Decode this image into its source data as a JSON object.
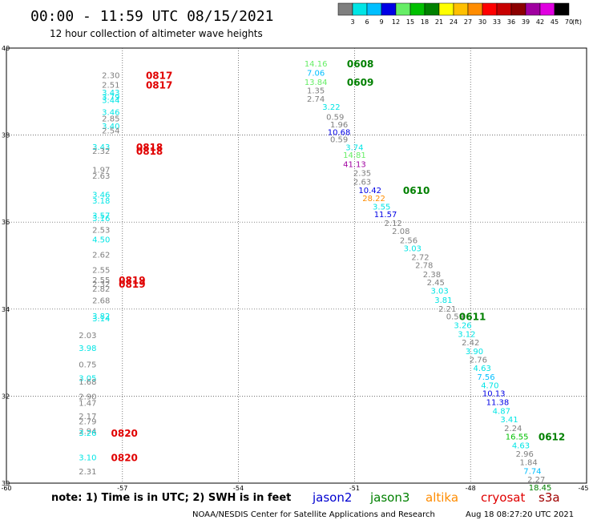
{
  "title": "00:00 - 11:59 UTC 08/15/2021",
  "subtitle": "12 hour collection of altimeter wave heights",
  "note": "note: 1) Time is in UTC; 2) SWH is in feet",
  "footer_left": "NOAA/NESDIS Center for Satellite Applications and Research",
  "footer_right": "Aug 18 08:27:20 UTC 2021",
  "colorbar": {
    "labels": [
      "3",
      "6",
      "9",
      "12",
      "15",
      "18",
      "21",
      "24",
      "27",
      "30",
      "33",
      "36",
      "39",
      "42",
      "45",
      "70"
    ],
    "unit": "(ft)",
    "colors": [
      "#7f7f7f",
      "#00e5e5",
      "#00bfff",
      "#0000e5",
      "#66ee66",
      "#00c000",
      "#008000",
      "#ffff00",
      "#ffc000",
      "#ff8c00",
      "#ff0000",
      "#c80000",
      "#8b0000",
      "#a000a0",
      "#e000e0",
      "#000000"
    ]
  },
  "satellites": [
    {
      "name": "jason2",
      "color": "#0000d0"
    },
    {
      "name": "jason3",
      "color": "#008000"
    },
    {
      "name": "altika",
      "color": "#ff8c00"
    },
    {
      "name": "cryosat",
      "color": "#e00000"
    },
    {
      "name": "s3a",
      "color": "#a00000"
    }
  ],
  "chart_data": {
    "type": "scatter",
    "title": "00:00 - 11:59 UTC 08/15/2021",
    "subtitle": "12 hour collection of altimeter wave heights",
    "xlabel": "",
    "ylabel": "",
    "xlim": [
      -60,
      -45
    ],
    "ylim": [
      30,
      40
    ],
    "x_ticks": [
      "-60",
      "-57",
      "-54",
      "-51",
      "-48",
      "-45"
    ],
    "y_ticks": [
      "30",
      "32",
      "34",
      "36",
      "38",
      "40"
    ],
    "grid": true,
    "series": [
      {
        "name": "cryosat",
        "color": "#e00000",
        "points": [
          {
            "x": -57.3,
            "y": 39.37,
            "v": "2.30"
          },
          {
            "x": -57.3,
            "y": 39.15,
            "v": "2.51"
          },
          {
            "x": -57.3,
            "y": 38.98,
            "v": "3.43"
          },
          {
            "x": -57.3,
            "y": 38.88,
            "v": "3.79"
          },
          {
            "x": -57.3,
            "y": 38.8,
            "v": "3.44"
          },
          {
            "x": -57.3,
            "y": 38.53,
            "v": "3.46"
          },
          {
            "x": -57.3,
            "y": 38.38,
            "v": "2.85"
          },
          {
            "x": -57.3,
            "y": 38.2,
            "v": "3.40"
          },
          {
            "x": -57.3,
            "y": 38.1,
            "v": "2.54"
          },
          {
            "x": -57.55,
            "y": 37.73,
            "v": "3.43"
          },
          {
            "x": -57.55,
            "y": 37.63,
            "v": "2.32"
          },
          {
            "x": -57.55,
            "y": 37.2,
            "v": "1.97"
          },
          {
            "x": -57.55,
            "y": 37.06,
            "v": "2.63"
          },
          {
            "x": -57.55,
            "y": 36.63,
            "v": "3.46"
          },
          {
            "x": -57.55,
            "y": 36.49,
            "v": "3.18"
          },
          {
            "x": -57.55,
            "y": 36.15,
            "v": "3.57"
          },
          {
            "x": -57.55,
            "y": 36.09,
            "v": "3.16"
          },
          {
            "x": -57.55,
            "y": 35.82,
            "v": "2.53"
          },
          {
            "x": -57.55,
            "y": 35.6,
            "v": "4.50"
          },
          {
            "x": -57.55,
            "y": 35.25,
            "v": "2.62"
          },
          {
            "x": -57.55,
            "y": 34.9,
            "v": "2.55"
          },
          {
            "x": -57.55,
            "y": 34.67,
            "v": "2.55"
          },
          {
            "x": -57.55,
            "y": 34.58,
            "v": "2.32"
          },
          {
            "x": -57.55,
            "y": 34.47,
            "v": "2.82"
          },
          {
            "x": -57.55,
            "y": 34.2,
            "v": "2.68"
          },
          {
            "x": -57.55,
            "y": 33.84,
            "v": "3.82"
          },
          {
            "x": -57.55,
            "y": 33.78,
            "v": "3.14"
          },
          {
            "x": -57.9,
            "y": 33.4,
            "v": "2.03"
          },
          {
            "x": -57.9,
            "y": 33.1,
            "v": "3.98"
          },
          {
            "x": -57.9,
            "y": 32.73,
            "v": "0.75"
          },
          {
            "x": -57.9,
            "y": 32.41,
            "v": "3.05"
          },
          {
            "x": -57.9,
            "y": 32.33,
            "v": "1.68"
          },
          {
            "x": -57.9,
            "y": 31.99,
            "v": "2.90"
          },
          {
            "x": -57.9,
            "y": 31.84,
            "v": "1.47"
          },
          {
            "x": -57.9,
            "y": 31.54,
            "v": "2.17"
          },
          {
            "x": -57.9,
            "y": 31.42,
            "v": "2.79"
          },
          {
            "x": -57.9,
            "y": 31.2,
            "v": "2.94"
          },
          {
            "x": -57.9,
            "y": 31.15,
            "v": "3.26"
          },
          {
            "x": -57.9,
            "y": 30.59,
            "v": "3.10"
          },
          {
            "x": -57.9,
            "y": 30.27,
            "v": "2.31"
          }
        ]
      },
      {
        "name": "jason3",
        "color": "#008000",
        "points": [
          {
            "x": -52.0,
            "y": 39.64,
            "v": "14.16"
          },
          {
            "x": -52.0,
            "y": 39.43,
            "v": "7.06"
          },
          {
            "x": -52.0,
            "y": 39.22,
            "v": "13.84"
          },
          {
            "x": -52.0,
            "y": 39.02,
            "v": "1.35"
          },
          {
            "x": -52.0,
            "y": 38.83,
            "v": "2.74"
          },
          {
            "x": -51.6,
            "y": 38.65,
            "v": "3.22"
          },
          {
            "x": -51.5,
            "y": 38.42,
            "v": "0.59"
          },
          {
            "x": -51.4,
            "y": 38.24,
            "v": "1.96"
          },
          {
            "x": -51.4,
            "y": 38.07,
            "v": "10.68"
          },
          {
            "x": -51.4,
            "y": 37.9,
            "v": "0.59"
          },
          {
            "x": -51.0,
            "y": 37.72,
            "v": "3.74"
          },
          {
            "x": -51.0,
            "y": 37.54,
            "v": "14.81"
          },
          {
            "x": -51.0,
            "y": 37.33,
            "v": "41.13"
          },
          {
            "x": -50.8,
            "y": 37.13,
            "v": "2.35"
          },
          {
            "x": -50.8,
            "y": 36.92,
            "v": "2.63"
          },
          {
            "x": -50.6,
            "y": 36.73,
            "v": "10.42"
          },
          {
            "x": -50.5,
            "y": 36.55,
            "v": "28.22"
          },
          {
            "x": -50.3,
            "y": 36.35,
            "v": "3.55"
          },
          {
            "x": -50.2,
            "y": 36.18,
            "v": "11.57"
          },
          {
            "x": -50.0,
            "y": 35.98,
            "v": "2.12"
          },
          {
            "x": -49.8,
            "y": 35.79,
            "v": "2.08"
          },
          {
            "x": -49.6,
            "y": 35.58,
            "v": "2.56"
          },
          {
            "x": -49.5,
            "y": 35.4,
            "v": "3.03"
          },
          {
            "x": -49.3,
            "y": 35.19,
            "v": "2.72"
          },
          {
            "x": -49.2,
            "y": 35.01,
            "v": "2.78"
          },
          {
            "x": -49.0,
            "y": 34.8,
            "v": "2.38"
          },
          {
            "x": -48.9,
            "y": 34.61,
            "v": "2.45"
          },
          {
            "x": -48.8,
            "y": 34.42,
            "v": "3.03"
          },
          {
            "x": -48.7,
            "y": 34.21,
            "v": "3.81"
          },
          {
            "x": -48.6,
            "y": 34.01,
            "v": "2.21"
          },
          {
            "x": -48.4,
            "y": 33.83,
            "v": "0.59"
          },
          {
            "x": -48.2,
            "y": 33.63,
            "v": "3.26"
          },
          {
            "x": -48.1,
            "y": 33.43,
            "v": "3.12"
          },
          {
            "x": -48.0,
            "y": 33.23,
            "v": "2.42"
          },
          {
            "x": -47.9,
            "y": 33.03,
            "v": "3.90"
          },
          {
            "x": -47.8,
            "y": 32.84,
            "v": "2.76"
          },
          {
            "x": -47.7,
            "y": 32.64,
            "v": "4.63"
          },
          {
            "x": -47.6,
            "y": 32.44,
            "v": "7.56"
          },
          {
            "x": -47.5,
            "y": 32.25,
            "v": "4.70"
          },
          {
            "x": -47.4,
            "y": 32.06,
            "v": "10.13"
          },
          {
            "x": -47.3,
            "y": 31.86,
            "v": "11.38"
          },
          {
            "x": -47.2,
            "y": 31.66,
            "v": "4.87"
          },
          {
            "x": -47.0,
            "y": 31.46,
            "v": "3.41"
          },
          {
            "x": -46.9,
            "y": 31.26,
            "v": "2.24"
          },
          {
            "x": -46.8,
            "y": 31.07,
            "v": "16.55"
          },
          {
            "x": -46.7,
            "y": 30.87,
            "v": "4.63"
          },
          {
            "x": -46.6,
            "y": 30.67,
            "v": "2.96"
          },
          {
            "x": -46.5,
            "y": 30.48,
            "v": "1.84"
          },
          {
            "x": -46.4,
            "y": 30.28,
            "v": "7.74"
          },
          {
            "x": -46.3,
            "y": 30.08,
            "v": "2.27"
          },
          {
            "x": -46.2,
            "y": 29.9,
            "v": "18.45"
          }
        ]
      }
    ],
    "track_labels": [
      {
        "text": "0817",
        "color": "#e00000",
        "x": -56.05,
        "y": 39.37
      },
      {
        "text": "0817",
        "color": "#e00000",
        "x": -56.05,
        "y": 39.15
      },
      {
        "text": "0818",
        "color": "#e00000",
        "x": -56.3,
        "y": 37.73
      },
      {
        "text": "0818",
        "color": "#e00000",
        "x": -56.3,
        "y": 37.63
      },
      {
        "text": "0819",
        "color": "#e00000",
        "x": -56.75,
        "y": 34.67
      },
      {
        "text": "0819",
        "color": "#e00000",
        "x": -56.75,
        "y": 34.58
      },
      {
        "text": "0820",
        "color": "#e00000",
        "x": -56.95,
        "y": 31.15
      },
      {
        "text": "0820",
        "color": "#e00000",
        "x": -56.95,
        "y": 30.59
      },
      {
        "text": "0608",
        "color": "#008000",
        "x": -50.85,
        "y": 39.64
      },
      {
        "text": "0609",
        "color": "#008000",
        "x": -50.85,
        "y": 39.22
      },
      {
        "text": "0610",
        "color": "#008000",
        "x": -49.4,
        "y": 36.73
      },
      {
        "text": "0611",
        "color": "#008000",
        "x": -47.95,
        "y": 33.83
      },
      {
        "text": "0612",
        "color": "#008000",
        "x": -45.9,
        "y": 31.07
      }
    ]
  }
}
